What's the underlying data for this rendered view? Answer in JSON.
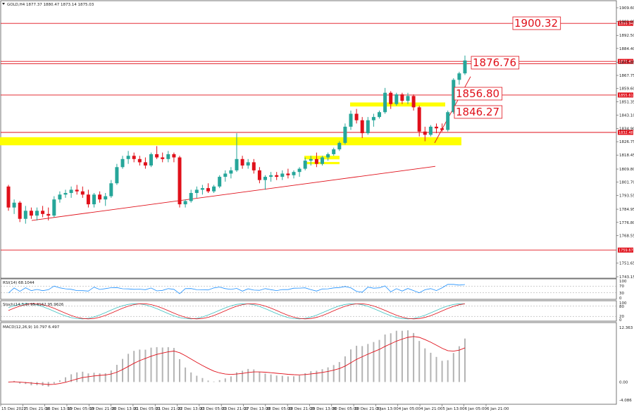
{
  "header": {
    "symbol_text": "GOLD,H4  1877.37 1880.47 1873.14 1875.03",
    "rsi_text": "RSI(14) 68.1044",
    "stoch_text": "Stoch(14,3,3) 95.4162 95.9626",
    "macd_text": "MACD(12,26,9) 10.797 6.497"
  },
  "chart_data": {
    "type": "candlestick",
    "symbol": "GOLD",
    "timeframe": "H4",
    "ohlc_header": [
      1877.37,
      1880.47,
      1873.14,
      1875.03
    ],
    "price_axis": {
      "range": [
        1738,
        1914
      ],
      "ticks": [
        "1909.60",
        "1901.05",
        "1892.50",
        "1884.40",
        "1875.85",
        "1867.75",
        "1859.60",
        "1851.35",
        "1843.10",
        "1834.90",
        "1826.75",
        "1818.45",
        "1809.80",
        "1801.70",
        "1793.55",
        "1784.95",
        "1776.80",
        "1768.55",
        "1751.65",
        "1743.15"
      ]
    },
    "time_axis": {
      "labels": [
        "15 Dec 2022",
        "15 Dec 21:00",
        "16 Dec 13:00",
        "19 Dec 05:00",
        "19 Dec 21:00",
        "20 Dec 13:00",
        "21 Dec 05:00",
        "21 Dec 21:00",
        "22 Dec 13:00",
        "23 Dec 05:00",
        "23 Dec 21:00",
        "27 Dec 13:00",
        "28 Dec 05:00",
        "28 Dec 21:00",
        "29 Dec 13:00",
        "30 Dec 05:00",
        "30 Dec 21:00",
        "3 Jan 13:00",
        "4 Jan 05:00",
        "4 Jan 21:00",
        "5 Jan 13:00",
        "6 Jan 05:00",
        "6 Jan 21:00"
      ]
    },
    "candles": [
      [
        1799,
        1800,
        1784,
        1786
      ],
      [
        1786,
        1791,
        1782,
        1789
      ],
      [
        1789,
        1790,
        1777,
        1779
      ],
      [
        1779,
        1787,
        1776,
        1784
      ],
      [
        1784,
        1786,
        1779,
        1781
      ],
      [
        1781,
        1786,
        1778,
        1784
      ],
      [
        1784,
        1787,
        1780,
        1782
      ],
      [
        1782,
        1786,
        1778,
        1781
      ],
      [
        1781,
        1793,
        1780,
        1791
      ],
      [
        1791,
        1796,
        1789,
        1794
      ],
      [
        1794,
        1797,
        1792,
        1795
      ],
      [
        1795,
        1799,
        1792,
        1797
      ],
      [
        1797,
        1800,
        1794,
        1796
      ],
      [
        1796,
        1799,
        1792,
        1794
      ],
      [
        1794,
        1797,
        1786,
        1788
      ],
      [
        1788,
        1795,
        1786,
        1794
      ],
      [
        1794,
        1796,
        1789,
        1791
      ],
      [
        1791,
        1795,
        1787,
        1793
      ],
      [
        1793,
        1803,
        1792,
        1801
      ],
      [
        1801,
        1813,
        1800,
        1811
      ],
      [
        1811,
        1818,
        1810,
        1816
      ],
      [
        1816,
        1821,
        1813,
        1818
      ],
      [
        1818,
        1820,
        1814,
        1816
      ],
      [
        1816,
        1818,
        1812,
        1814
      ],
      [
        1814,
        1817,
        1810,
        1812
      ],
      [
        1812,
        1820,
        1811,
        1819
      ],
      [
        1819,
        1824,
        1816,
        1817
      ],
      [
        1817,
        1820,
        1814,
        1816
      ],
      [
        1816,
        1821,
        1814,
        1819
      ],
      [
        1819,
        1820,
        1814,
        1817
      ],
      [
        1817,
        1818,
        1786,
        1788
      ],
      [
        1788,
        1791,
        1786,
        1790
      ],
      [
        1790,
        1797,
        1789,
        1795
      ],
      [
        1795,
        1799,
        1792,
        1797
      ],
      [
        1797,
        1800,
        1794,
        1798
      ],
      [
        1798,
        1801,
        1795,
        1796
      ],
      [
        1796,
        1800,
        1795,
        1799
      ],
      [
        1799,
        1806,
        1798,
        1805
      ],
      [
        1805,
        1809,
        1802,
        1807
      ],
      [
        1807,
        1811,
        1804,
        1809
      ],
      [
        1809,
        1832,
        1808,
        1816
      ],
      [
        1816,
        1818,
        1810,
        1812
      ],
      [
        1812,
        1816,
        1810,
        1814
      ],
      [
        1814,
        1816,
        1807,
        1809
      ],
      [
        1809,
        1811,
        1801,
        1803
      ],
      [
        1803,
        1806,
        1797,
        1805
      ],
      [
        1805,
        1808,
        1802,
        1806
      ],
      [
        1806,
        1808,
        1803,
        1805
      ],
      [
        1805,
        1809,
        1803,
        1807
      ],
      [
        1807,
        1810,
        1804,
        1806
      ],
      [
        1806,
        1809,
        1804,
        1808
      ],
      [
        1808,
        1811,
        1805,
        1810
      ],
      [
        1810,
        1817,
        1809,
        1815
      ],
      [
        1815,
        1818,
        1812,
        1816
      ],
      [
        1816,
        1820,
        1811,
        1813
      ],
      [
        1813,
        1818,
        1812,
        1817
      ],
      [
        1817,
        1820,
        1815,
        1819
      ],
      [
        1819,
        1823,
        1818,
        1822
      ],
      [
        1822,
        1827,
        1821,
        1826
      ],
      [
        1826,
        1838,
        1825,
        1836
      ],
      [
        1836,
        1846,
        1834,
        1844
      ],
      [
        1844,
        1847,
        1838,
        1840
      ],
      [
        1840,
        1842,
        1829,
        1832
      ],
      [
        1832,
        1842,
        1831,
        1840
      ],
      [
        1840,
        1844,
        1836,
        1842
      ],
      [
        1842,
        1846,
        1841,
        1845
      ],
      [
        1845,
        1860,
        1844,
        1857
      ],
      [
        1857,
        1858,
        1847,
        1850
      ],
      [
        1850,
        1857,
        1849,
        1856
      ],
      [
        1856,
        1857,
        1850,
        1852
      ],
      [
        1852,
        1857,
        1850,
        1855
      ],
      [
        1855,
        1856,
        1846,
        1848
      ],
      [
        1848,
        1849,
        1830,
        1833
      ],
      [
        1833,
        1836,
        1827,
        1831
      ],
      [
        1831,
        1837,
        1830,
        1836
      ],
      [
        1836,
        1838,
        1832,
        1835
      ],
      [
        1835,
        1838,
        1833,
        1834
      ],
      [
        1834,
        1846,
        1833,
        1845
      ],
      [
        1845,
        1866,
        1844,
        1865
      ],
      [
        1865,
        1870,
        1862,
        1869
      ],
      [
        1869,
        1880,
        1868,
        1877
      ]
    ],
    "horizontal_levels": [
      {
        "price": 1899.94,
        "tag": "1899.94"
      },
      {
        "price": 1876.41,
        "tag": "1876.41"
      },
      {
        "price": 1874.95
      },
      {
        "price": 1855.61,
        "tag": "1855.61"
      },
      {
        "price": 1832.48,
        "tag": "1832.48"
      },
      {
        "price": 1759.67,
        "tag": "1759.67"
      }
    ],
    "annotations": [
      "1900.32",
      "1876.76",
      "1856.80",
      "1846.27"
    ],
    "rsi": {
      "range": [
        0,
        100
      ],
      "ticks": [
        "100",
        "70",
        "30",
        "0"
      ],
      "value": 68.1044
    },
    "stochastic": {
      "ticks": [
        "100",
        "80",
        "20",
        "0"
      ],
      "main": 95.4162,
      "signal": 95.9626
    },
    "macd": {
      "ticks": [
        "12.363",
        "0.00",
        "-4.086"
      ],
      "main": 10.797,
      "signal": 6.497
    },
    "colors": {
      "bull": "#26a69a",
      "bear": "#e0101a",
      "level": "#e0101a",
      "zone": "#ffff00",
      "rsi_line": "#1e90ff",
      "stoch_signal": "#e0101a",
      "stoch_main": "#40c0c0",
      "macd_signal": "#e0101a",
      "macd_hist": "#b4b4b4"
    }
  }
}
